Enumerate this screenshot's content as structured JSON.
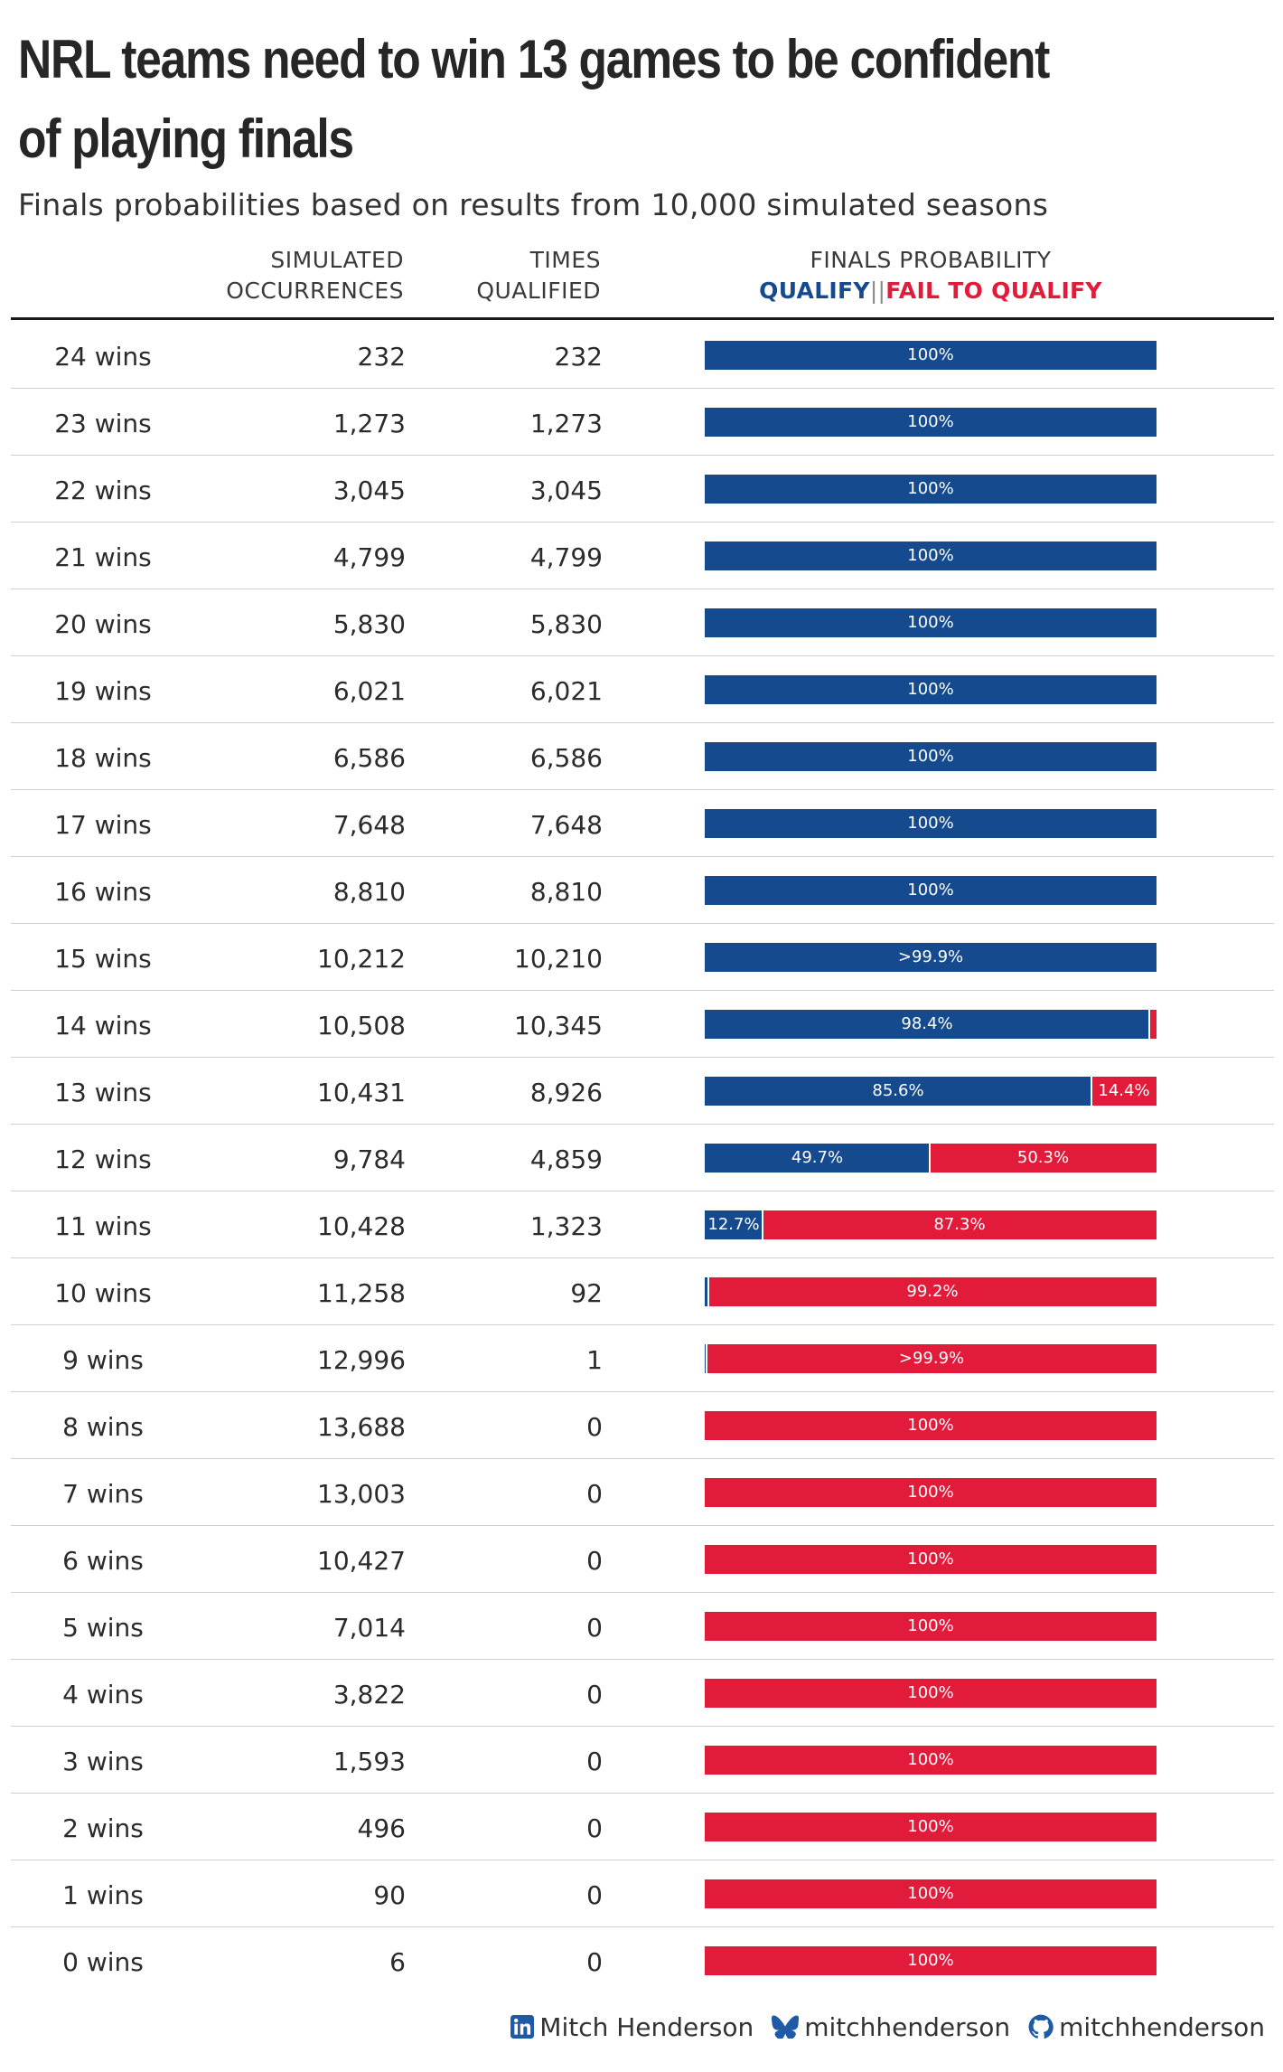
{
  "title": "NRL teams need to win 13 games to be confident of playing finals",
  "subtitle": "Finals probabilities based on results from 10,000 simulated seasons",
  "headers": {
    "occurrences_line1": "SIMULATED",
    "occurrences_line2": "OCCURRENCES",
    "qualified_line1": "TIMES",
    "qualified_line2": "QUALIFIED",
    "probability": "FINALS PROBABILITY",
    "legend_qualify": "QUALIFY",
    "legend_separator": "||",
    "legend_fail": "FAIL TO QUALIFY"
  },
  "colors": {
    "qualify": "#154b8e",
    "fail": "#e31b3a"
  },
  "footer": {
    "linkedin_icon": "linkedin-icon",
    "linkedin": "Mitch Henderson",
    "bluesky_icon": "bluesky-icon",
    "bluesky": "mitchhenderson",
    "github_icon": "github-icon",
    "github": "mitchhenderson"
  },
  "chart_data": {
    "type": "table",
    "columns": [
      "",
      "SIMULATED OCCURRENCES",
      "TIMES QUALIFIED",
      "FINALS PROBABILITY"
    ],
    "rows": [
      {
        "wins": "24 wins",
        "occurrences": "232",
        "qualified": "232",
        "qualify_pct": 100,
        "qualify_label": "100%",
        "fail_label": ""
      },
      {
        "wins": "23 wins",
        "occurrences": "1,273",
        "qualified": "1,273",
        "qualify_pct": 100,
        "qualify_label": "100%",
        "fail_label": ""
      },
      {
        "wins": "22 wins",
        "occurrences": "3,045",
        "qualified": "3,045",
        "qualify_pct": 100,
        "qualify_label": "100%",
        "fail_label": ""
      },
      {
        "wins": "21 wins",
        "occurrences": "4,799",
        "qualified": "4,799",
        "qualify_pct": 100,
        "qualify_label": "100%",
        "fail_label": ""
      },
      {
        "wins": "20 wins",
        "occurrences": "5,830",
        "qualified": "5,830",
        "qualify_pct": 100,
        "qualify_label": "100%",
        "fail_label": ""
      },
      {
        "wins": "19 wins",
        "occurrences": "6,021",
        "qualified": "6,021",
        "qualify_pct": 100,
        "qualify_label": "100%",
        "fail_label": ""
      },
      {
        "wins": "18 wins",
        "occurrences": "6,586",
        "qualified": "6,586",
        "qualify_pct": 100,
        "qualify_label": "100%",
        "fail_label": ""
      },
      {
        "wins": "17 wins",
        "occurrences": "7,648",
        "qualified": "7,648",
        "qualify_pct": 100,
        "qualify_label": "100%",
        "fail_label": ""
      },
      {
        "wins": "16 wins",
        "occurrences": "8,810",
        "qualified": "8,810",
        "qualify_pct": 100,
        "qualify_label": "100%",
        "fail_label": ""
      },
      {
        "wins": "15 wins",
        "occurrences": "10,212",
        "qualified": "10,210",
        "qualify_pct": 99.98,
        "qualify_label": ">99.9%",
        "fail_label": ""
      },
      {
        "wins": "14 wins",
        "occurrences": "10,508",
        "qualified": "10,345",
        "qualify_pct": 98.4,
        "qualify_label": "98.4%",
        "fail_label": ""
      },
      {
        "wins": "13 wins",
        "occurrences": "10,431",
        "qualified": "8,926",
        "qualify_pct": 85.6,
        "qualify_label": "85.6%",
        "fail_label": "14.4%"
      },
      {
        "wins": "12 wins",
        "occurrences": "9,784",
        "qualified": "4,859",
        "qualify_pct": 49.7,
        "qualify_label": "49.7%",
        "fail_label": "50.3%"
      },
      {
        "wins": "11 wins",
        "occurrences": "10,428",
        "qualified": "1,323",
        "qualify_pct": 12.7,
        "qualify_label": "12.7%",
        "fail_label": "87.3%"
      },
      {
        "wins": "10 wins",
        "occurrences": "11,258",
        "qualified": "92",
        "qualify_pct": 0.8,
        "qualify_label": "",
        "fail_label": "99.2%"
      },
      {
        "wins": "9 wins",
        "occurrences": "12,996",
        "qualified": "1",
        "qualify_pct": 0.01,
        "qualify_label": "",
        "fail_label": ">99.9%"
      },
      {
        "wins": "8 wins",
        "occurrences": "13,688",
        "qualified": "0",
        "qualify_pct": 0,
        "qualify_label": "",
        "fail_label": "100%"
      },
      {
        "wins": "7 wins",
        "occurrences": "13,003",
        "qualified": "0",
        "qualify_pct": 0,
        "qualify_label": "",
        "fail_label": "100%"
      },
      {
        "wins": "6 wins",
        "occurrences": "10,427",
        "qualified": "0",
        "qualify_pct": 0,
        "qualify_label": "",
        "fail_label": "100%"
      },
      {
        "wins": "5 wins",
        "occurrences": "7,014",
        "qualified": "0",
        "qualify_pct": 0,
        "qualify_label": "",
        "fail_label": "100%"
      },
      {
        "wins": "4 wins",
        "occurrences": "3,822",
        "qualified": "0",
        "qualify_pct": 0,
        "qualify_label": "",
        "fail_label": "100%"
      },
      {
        "wins": "3 wins",
        "occurrences": "1,593",
        "qualified": "0",
        "qualify_pct": 0,
        "qualify_label": "",
        "fail_label": "100%"
      },
      {
        "wins": "2 wins",
        "occurrences": "496",
        "qualified": "0",
        "qualify_pct": 0,
        "qualify_label": "",
        "fail_label": "100%"
      },
      {
        "wins": "1 wins",
        "occurrences": "90",
        "qualified": "0",
        "qualify_pct": 0,
        "qualify_label": "",
        "fail_label": "100%"
      },
      {
        "wins": "0 wins",
        "occurrences": "6",
        "qualified": "0",
        "qualify_pct": 0,
        "qualify_label": "",
        "fail_label": "100%"
      }
    ]
  }
}
